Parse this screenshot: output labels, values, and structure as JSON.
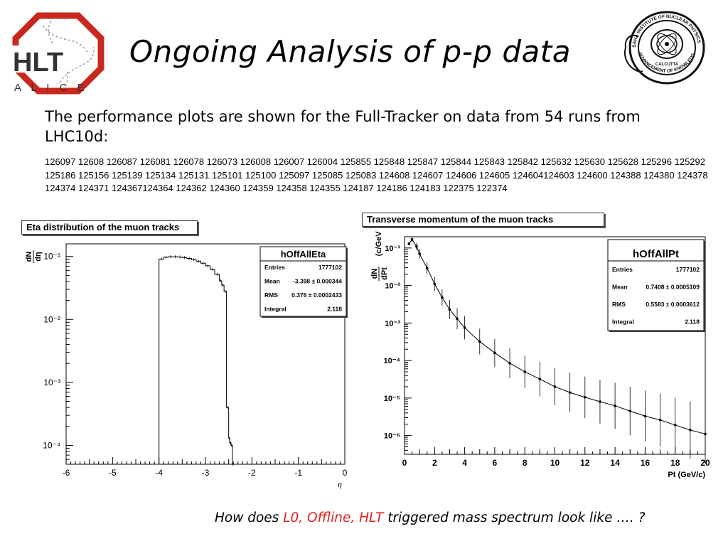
{
  "slide": {
    "title": "Ongoing Analysis of p-p data",
    "intro": "The performance plots are shown for the Full-Tracker on data from 54 runs from LHC10d:",
    "runs": "126097 12608 126087 126081  126078  126073 126008 126007 126004 125855 125848 125847 125844 125843 125842 125632 125630 125628  125296 125292 125186 125156 125139 125134 125131 125101 125100 125097 125085 125083 124608 124607 124606 124605 124604124603 124600 124388 124380 124378 124374 124371 124367124364 124362 124360 124359 124358 124355 124187 124186 124183 122375 122374",
    "footer": {
      "prefix": "How does ",
      "highlight": "L0, Offline, HLT",
      "suffix": " triggered mass spectrum look like …. ?",
      "highlight_color": "#e0201b"
    }
  },
  "logos": {
    "hlt_text": "HLT",
    "alice_text": "ALICE",
    "hlt_color": "#c8281e",
    "saha_ring_top": "SAHA INSTITUTE OF NUCLEAR PHYSICS",
    "saha_ring_bottom": "ADVANCEMENT OF KNOWLEDGE",
    "saha_city": "CALCUTTA"
  },
  "chart_data": [
    {
      "type": "histogram",
      "panel_title": "Eta distribution of the muon tracks",
      "xlabel": "η",
      "ylabel": "dN/dη",
      "xlim": [
        -6,
        0
      ],
      "ylim_log": [
        -4.3,
        -0.8
      ],
      "yscale": "log",
      "x_ticks": [
        "-6",
        "-5",
        "-4",
        "-3",
        "-2",
        "-1",
        "0"
      ],
      "y_ticks": [
        "10⁻¹",
        "10⁻²",
        "10⁻³",
        "10⁻⁴"
      ],
      "y_tick_values": [
        0.1,
        0.01,
        0.001,
        0.0001
      ],
      "x": [
        -4.0,
        -3.9,
        -3.8,
        -3.7,
        -3.6,
        -3.5,
        -3.4,
        -3.3,
        -3.2,
        -3.1,
        -3.0,
        -2.9,
        -2.8,
        -2.7,
        -2.65,
        -2.6,
        -2.55,
        -2.5,
        -2.48,
        -2.45,
        -2.42
      ],
      "values": [
        0.091,
        0.097,
        0.099,
        0.099,
        0.098,
        0.096,
        0.093,
        0.089,
        0.084,
        0.078,
        0.071,
        0.062,
        0.052,
        0.041,
        0.035,
        0.028,
        0.0004,
        0.00013,
        0.00011,
        0.0001,
        5e-05
      ],
      "stats": {
        "name": "hOffAllEta",
        "rows": [
          {
            "label": "Entries",
            "value": "1777102"
          },
          {
            "label": "Mean",
            "value": "-3.398 ± 0.000344"
          },
          {
            "label": "RMS",
            "value": "0.376 ± 0.0002433"
          },
          {
            "label": "Integral",
            "value": "2.118"
          }
        ]
      },
      "grid": false
    },
    {
      "type": "scatter",
      "panel_title": "Transverse momentum of the muon tracks",
      "xlabel": "Pt (GeV/c)",
      "ylabel": "dN/dPt (c/GeV)",
      "xlim": [
        0,
        20
      ],
      "yscale": "log",
      "ylim_log": [
        -6.5,
        -0.7
      ],
      "x_ticks": [
        "0",
        "2",
        "4",
        "6",
        "8",
        "10",
        "12",
        "14",
        "16",
        "18",
        "20"
      ],
      "y_ticks": [
        "10⁻¹",
        "10⁻²",
        "10⁻³",
        "10⁻⁴",
        "10⁻⁵",
        "10⁻⁶"
      ],
      "y_tick_values": [
        0.1,
        0.01,
        0.001,
        0.0001,
        1e-05,
        1e-06
      ],
      "x": [
        0.3,
        0.5,
        0.8,
        1.0,
        1.5,
        2.0,
        2.5,
        3.0,
        3.5,
        4.0,
        5.0,
        6.0,
        7.0,
        8.0,
        9.0,
        10.0,
        11.0,
        12.0,
        13.0,
        14.0,
        15.0,
        16.0,
        17.0,
        18.0,
        19.0,
        20.0
      ],
      "values": [
        0.13,
        0.17,
        0.11,
        0.07,
        0.029,
        0.011,
        0.0048,
        0.0023,
        0.0013,
        0.00075,
        0.00032,
        0.00016,
        8.5e-05,
        5e-05,
        3.2e-05,
        2e-05,
        1.4e-05,
        1.05e-05,
        8e-06,
        6.2e-06,
        4.5e-06,
        3.3e-06,
        2.6e-06,
        1.9e-06,
        1.4e-06,
        1.1e-06
      ],
      "stats": {
        "name": "hOffAllPt",
        "rows": [
          {
            "label": "Entries",
            "value": "1777102"
          },
          {
            "label": "Mean",
            "value": "0.7408 ± 0.0005109"
          },
          {
            "label": "RMS",
            "value": "0.5583 ± 0.0003612"
          },
          {
            "label": "Integral",
            "value": "2.118"
          }
        ]
      },
      "grid": false
    }
  ]
}
